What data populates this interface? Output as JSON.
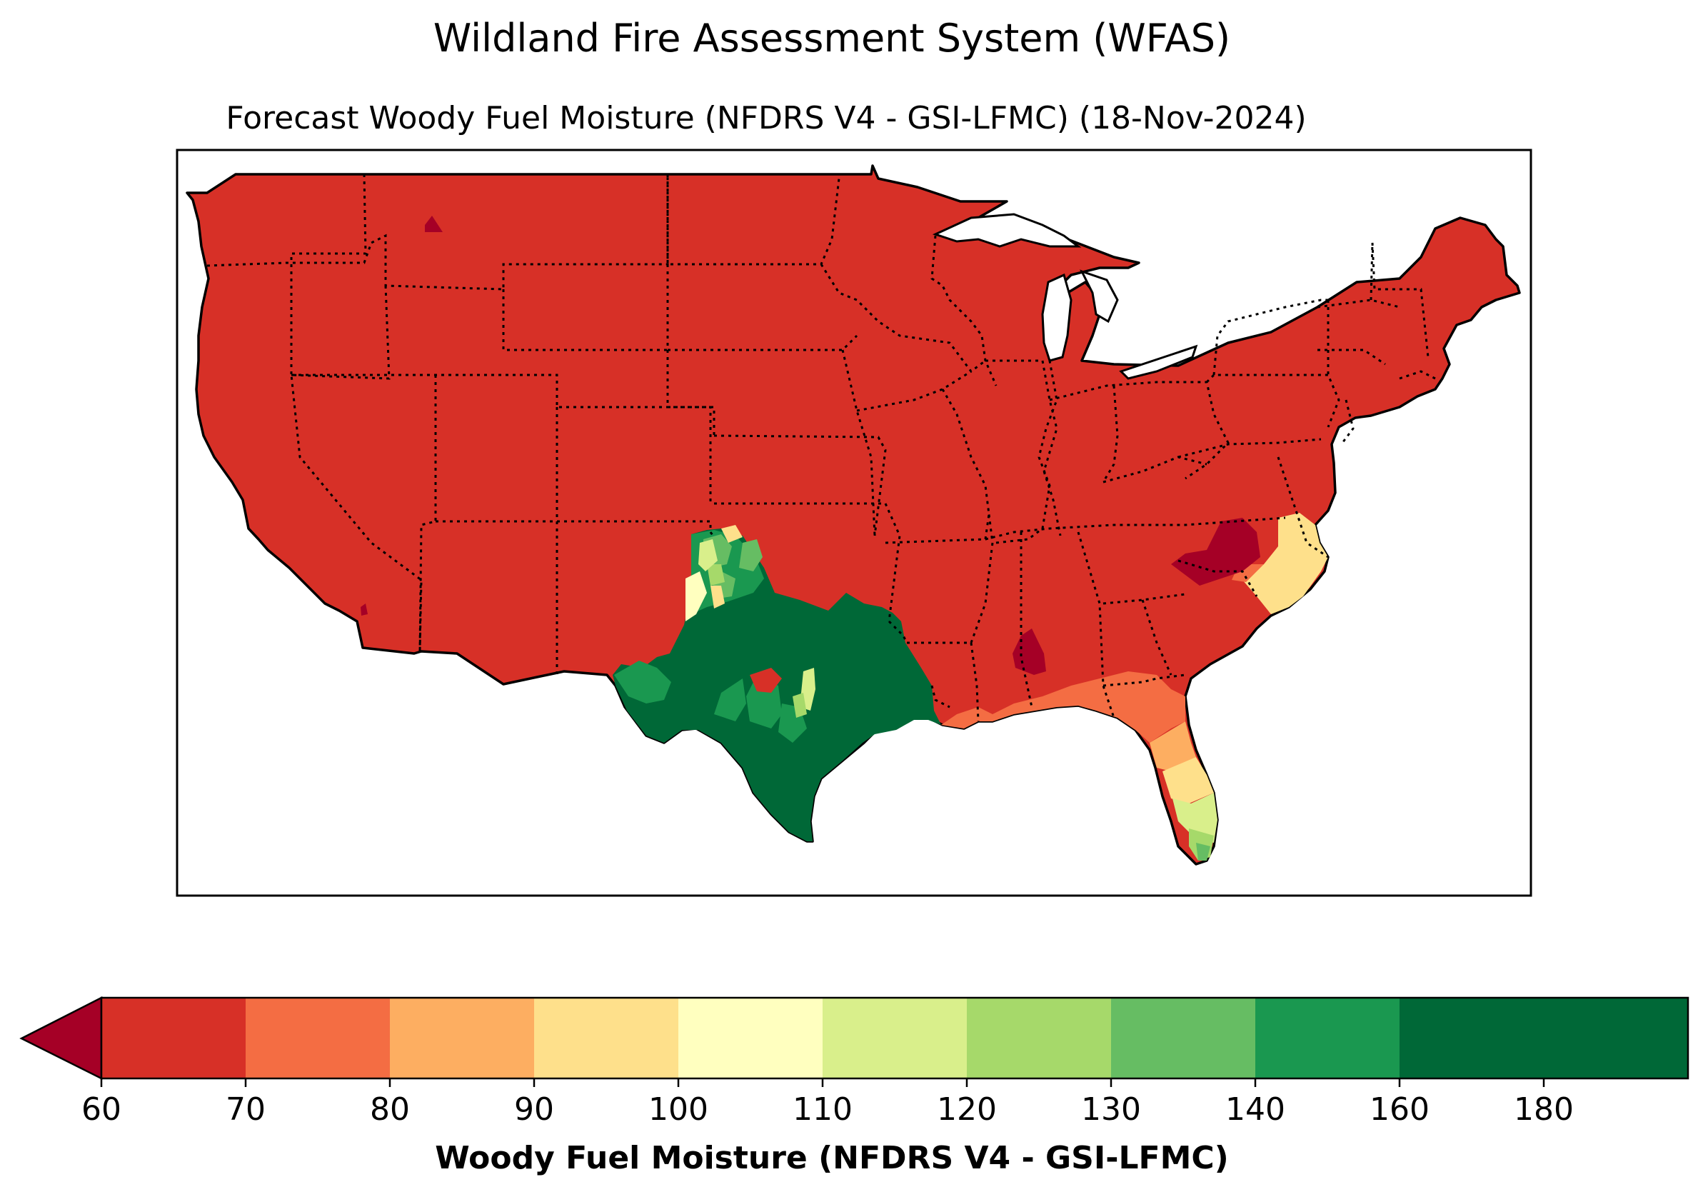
{
  "header": {
    "suptitle": "Wildland Fire Assessment System (WFAS)",
    "title": "Forecast Woody Fuel Moisture (NFDRS V4 - GSI-LFMC) (18-Nov-2024)"
  },
  "colorbar": {
    "label": "Woody Fuel Moisture (NFDRS V4 - GSI-LFMC)",
    "extend": "min",
    "ticks": [
      "60",
      "70",
      "80",
      "90",
      "100",
      "110",
      "120",
      "130",
      "140",
      "160",
      "180"
    ],
    "under_color": "#a50026",
    "bins": [
      {
        "from": 60,
        "to": 70,
        "color": "#d73027"
      },
      {
        "from": 70,
        "to": 80,
        "color": "#f46d43"
      },
      {
        "from": 80,
        "to": 90,
        "color": "#fdae61"
      },
      {
        "from": 90,
        "to": 100,
        "color": "#fee08b"
      },
      {
        "from": 100,
        "to": 110,
        "color": "#ffffbf"
      },
      {
        "from": 110,
        "to": 120,
        "color": "#d9ef8b"
      },
      {
        "from": 120,
        "to": 130,
        "color": "#a6d96a"
      },
      {
        "from": 130,
        "to": 140,
        "color": "#66bd63"
      },
      {
        "from": 140,
        "to": 160,
        "color": "#1a9850"
      },
      {
        "from": 160,
        "to": 200,
        "color": "#006837"
      }
    ]
  },
  "map": {
    "region": "CONUS",
    "dominant_range": "60-70",
    "features": [
      {
        "area": "Texas / western Oklahoma",
        "range": "160+"
      },
      {
        "area": "Texas Panhandle / eastern New Mexico",
        "range": "90-140"
      },
      {
        "area": "Florida peninsula",
        "range": "70-140"
      },
      {
        "area": "eastern North Carolina",
        "range": "90-100"
      },
      {
        "area": "North Carolina piedmont",
        "range": "<60"
      },
      {
        "area": "Gulf coast",
        "range": "70-80"
      }
    ]
  }
}
